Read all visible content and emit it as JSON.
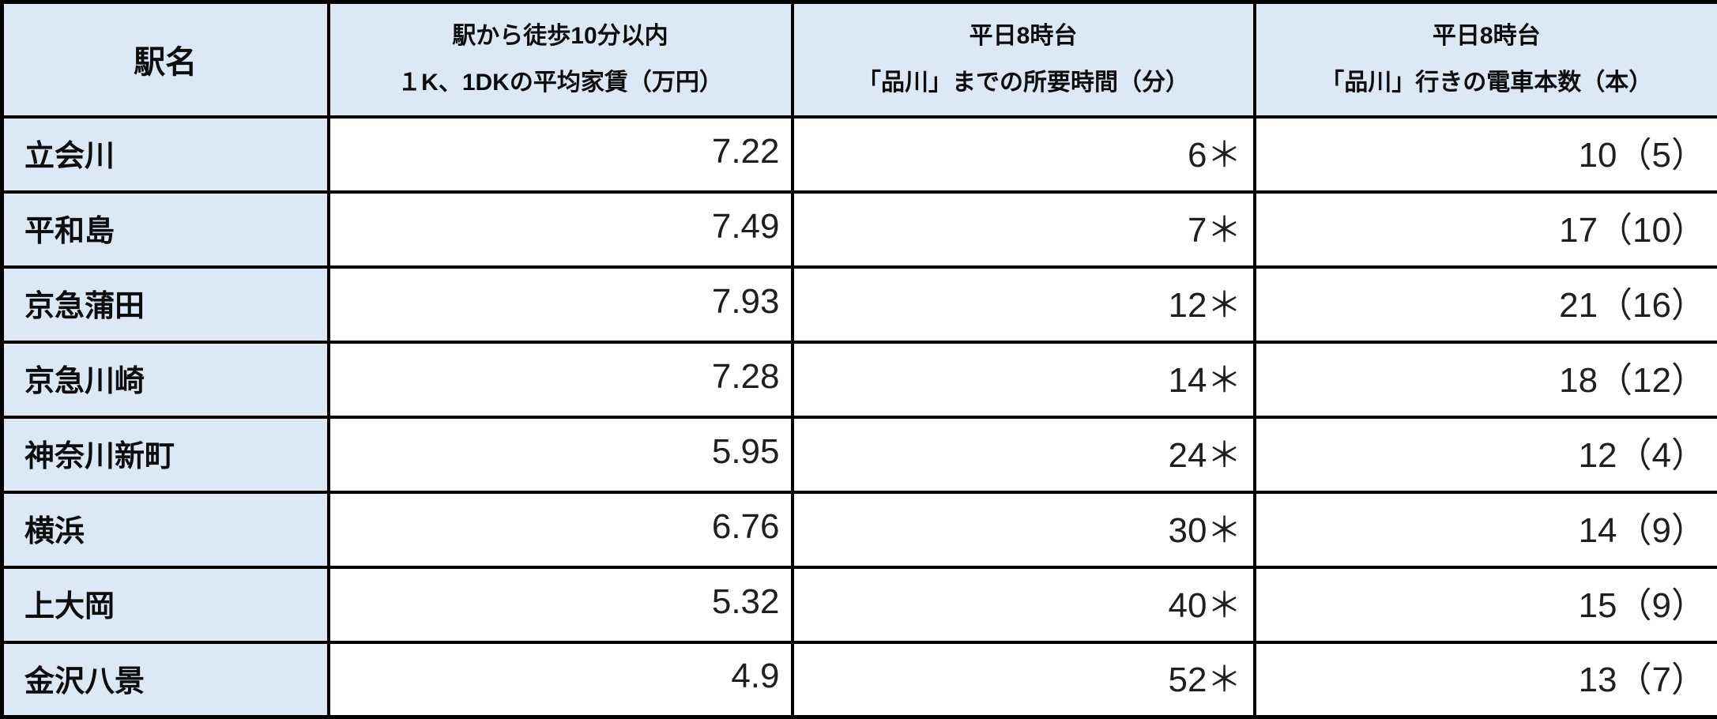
{
  "colors": {
    "header_bg": "#dbe8f5",
    "station_col_bg": "#dbe8f5",
    "cell_bg": "#ffffff",
    "border": "#000000",
    "header_text": "#0d0d0d",
    "number_text": "#1f1f1f"
  },
  "table": {
    "header": {
      "col1": "駅名",
      "col2_line1": "駅から徒歩10分以内",
      "col2_line2": "１K、1DKの平均家賃（万円）",
      "col3_line1": "平日8時台",
      "col3_line2": "「品川」までの所要時間（分）",
      "col4_line1": "平日8時台",
      "col4_line2": "「品川」行きの電車本数（本）"
    },
    "rows": [
      {
        "station": "立会川",
        "rent": "7.22",
        "time": "6＊",
        "trains": "10（5）"
      },
      {
        "station": "平和島",
        "rent": "7.49",
        "time": "7＊",
        "trains": "17（10）"
      },
      {
        "station": "京急蒲田",
        "rent": "7.93",
        "time": "12＊",
        "trains": "21（16）"
      },
      {
        "station": "京急川崎",
        "rent": "7.28",
        "time": "14＊",
        "trains": "18（12）"
      },
      {
        "station": "神奈川新町",
        "rent": "5.95",
        "time": "24＊",
        "trains": "12（4）"
      },
      {
        "station": "横浜",
        "rent": "6.76",
        "time": "30＊",
        "trains": "14（9）"
      },
      {
        "station": "上大岡",
        "rent": "5.32",
        "time": "40＊",
        "trains": "15（9）"
      },
      {
        "station": "金沢八景",
        "rent": "4.9",
        "time": "52＊",
        "trains": "13（7）"
      }
    ]
  },
  "chart_data": {
    "type": "table",
    "columns": [
      "駅名",
      "駅から徒歩10分以内\n１K、1DKの平均家賃（万円）",
      "平日8時台\n「品川」までの所要時間（分）",
      "平日8時台\n「品川」行きの電車本数（本）"
    ],
    "rows": [
      [
        "立会川",
        "7.22",
        "6＊",
        "10（5）"
      ],
      [
        "平和島",
        "7.49",
        "7＊",
        "17（10）"
      ],
      [
        "京急蒲田",
        "7.93",
        "12＊",
        "21（16）"
      ],
      [
        "京急川崎",
        "7.28",
        "14＊",
        "18（12）"
      ],
      [
        "神奈川新町",
        "5.95",
        "24＊",
        "12（4）"
      ],
      [
        "横浜",
        "6.76",
        "30＊",
        "14（9）"
      ],
      [
        "上大岡",
        "5.32",
        "40＊",
        "15（9）"
      ],
      [
        "金沢八景",
        "4.9",
        "52＊",
        "13（7）"
      ]
    ],
    "rent_values_numeric": [
      7.22,
      7.49,
      7.93,
      7.28,
      5.95,
      6.76,
      5.32,
      4.9
    ],
    "time_values_numeric": [
      6,
      7,
      12,
      14,
      24,
      30,
      40,
      52
    ],
    "train_counts_total": [
      10,
      17,
      21,
      18,
      12,
      14,
      15,
      13
    ],
    "train_counts_parenthesized": [
      5,
      10,
      16,
      12,
      4,
      9,
      9,
      7
    ],
    "layout": "grid on, header row and first column shaded light blue, black gridlines"
  }
}
